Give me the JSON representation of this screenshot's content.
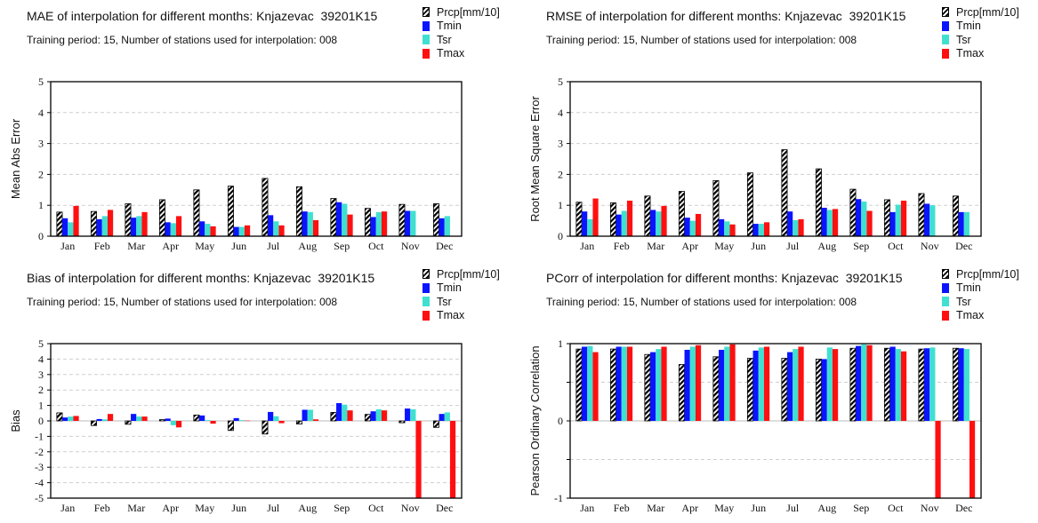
{
  "legend": {
    "series": [
      "Prcp[mm/10]",
      "Tmin",
      "Tsr",
      "Tmax"
    ]
  },
  "colors": {
    "Prcp[mm/10]": "hatch-black",
    "Tmin": "#0a14ff",
    "Tsr": "#3fe0d0",
    "Tmax": "#ff1010"
  },
  "months": [
    "Jan",
    "Feb",
    "Mar",
    "Apr",
    "May",
    "Jun",
    "Jul",
    "Aug",
    "Sep",
    "Oct",
    "Nov",
    "Dec"
  ],
  "panels": [
    {
      "title": "MAE of interpolation for different months: Knjazevac  39201K15",
      "subtitle": "Training period: 15, Number of stations used for interpolation: 008"
    },
    {
      "title": "RMSE of interpolation for different months: Knjazevac  39201K15",
      "subtitle": "Training period: 15, Number of stations used for interpolation: 008"
    },
    {
      "title": "Bias of interpolation for different months: Knjazevac  39201K15",
      "subtitle": "Training period: 15, Number of stations used for interpolation: 008"
    },
    {
      "title": "PCorr of interpolation for different months: Knjazevac  39201K15",
      "subtitle": "Training period: 15, Number of stations used for interpolation: 008"
    }
  ],
  "chart_data": [
    {
      "type": "bar",
      "ylabel": "Mean Abs Error",
      "ylim": [
        0,
        5
      ],
      "yticks": [
        "0",
        "1",
        "2",
        "3",
        "4",
        "5"
      ],
      "categories": [
        "Jan",
        "Feb",
        "Mar",
        "Apr",
        "May",
        "Jun",
        "Jul",
        "Aug",
        "Sep",
        "Oct",
        "Nov",
        "Dec"
      ],
      "series": [
        {
          "name": "Prcp[mm/10]",
          "values": [
            0.78,
            0.8,
            1.05,
            1.18,
            1.5,
            1.62,
            1.87,
            1.6,
            1.22,
            0.9,
            1.03,
            1.05
          ]
        },
        {
          "name": "Tmin",
          "values": [
            0.58,
            0.55,
            0.6,
            0.45,
            0.48,
            0.3,
            0.68,
            0.8,
            1.1,
            0.62,
            0.82,
            0.58
          ]
        },
        {
          "name": "Tsr",
          "values": [
            0.45,
            0.65,
            0.65,
            0.42,
            0.4,
            0.3,
            0.48,
            0.78,
            1.05,
            0.78,
            0.82,
            0.65
          ]
        },
        {
          "name": "Tmax",
          "values": [
            0.98,
            0.85,
            0.78,
            0.65,
            0.32,
            0.35,
            0.35,
            0.52,
            0.7,
            0.8,
            null,
            null
          ]
        }
      ]
    },
    {
      "type": "bar",
      "ylabel": "Root Mean Square Error",
      "ylim": [
        0,
        5
      ],
      "yticks": [
        "0",
        "1",
        "2",
        "3",
        "4",
        "5"
      ],
      "categories": [
        "Jan",
        "Feb",
        "Mar",
        "Apr",
        "May",
        "Jun",
        "Jul",
        "Aug",
        "Sep",
        "Oct",
        "Nov",
        "Dec"
      ],
      "series": [
        {
          "name": "Prcp[mm/10]",
          "values": [
            1.1,
            1.08,
            1.3,
            1.45,
            1.8,
            2.05,
            2.8,
            2.18,
            1.52,
            1.18,
            1.38,
            1.3
          ]
        },
        {
          "name": "Tmin",
          "values": [
            0.8,
            0.7,
            0.85,
            0.6,
            0.55,
            0.4,
            0.8,
            0.92,
            1.2,
            0.78,
            1.05,
            0.78
          ]
        },
        {
          "name": "Tsr",
          "values": [
            0.55,
            0.82,
            0.8,
            0.5,
            0.48,
            0.4,
            0.52,
            0.85,
            1.12,
            1.02,
            1.0,
            0.78
          ]
        },
        {
          "name": "Tmax",
          "values": [
            1.22,
            1.15,
            0.98,
            0.72,
            0.38,
            0.45,
            0.55,
            0.88,
            0.82,
            1.15,
            null,
            null
          ]
        }
      ]
    },
    {
      "type": "bar",
      "ylabel": "Bias",
      "ylim": [
        -5,
        5
      ],
      "yticks": [
        "-5",
        "-4",
        "-3",
        "-2",
        "-1",
        "0",
        "1",
        "2",
        "3",
        "4",
        "5"
      ],
      "categories": [
        "Jan",
        "Feb",
        "Mar",
        "Apr",
        "May",
        "Jun",
        "Jul",
        "Aug",
        "Sep",
        "Oct",
        "Nov",
        "Dec"
      ],
      "series": [
        {
          "name": "Prcp[mm/10]",
          "values": [
            0.52,
            -0.3,
            -0.22,
            0.08,
            0.38,
            -0.62,
            -0.85,
            -0.2,
            0.55,
            0.42,
            -0.12,
            -0.42
          ]
        },
        {
          "name": "Tmin",
          "values": [
            0.22,
            0.12,
            0.45,
            0.15,
            0.35,
            0.18,
            0.58,
            0.72,
            1.15,
            0.62,
            0.8,
            0.45
          ]
        },
        {
          "name": "Tsr",
          "values": [
            0.28,
            0.1,
            0.28,
            -0.28,
            0.05,
            0.05,
            0.3,
            0.72,
            1.05,
            0.75,
            0.75,
            0.55
          ]
        },
        {
          "name": "Tmax",
          "values": [
            0.32,
            0.45,
            0.28,
            -0.42,
            -0.18,
            0.02,
            -0.15,
            0.1,
            0.68,
            0.68,
            -5.0,
            -5.0
          ]
        }
      ]
    },
    {
      "type": "bar",
      "ylabel": "Pearson Ordinary Correlation",
      "ylim": [
        -1,
        1
      ],
      "yticks": [
        "-1",
        "",
        "0",
        "",
        "1"
      ],
      "categories": [
        "Jan",
        "Feb",
        "Mar",
        "Apr",
        "May",
        "Jun",
        "Jul",
        "Aug",
        "Sep",
        "Oct",
        "Nov",
        "Dec"
      ],
      "series": [
        {
          "name": "Prcp[mm/10]",
          "values": [
            0.93,
            0.93,
            0.86,
            0.73,
            0.83,
            0.81,
            0.81,
            0.8,
            0.94,
            0.94,
            0.93,
            0.94
          ]
        },
        {
          "name": "Tmin",
          "values": [
            0.96,
            0.96,
            0.89,
            0.92,
            0.92,
            0.91,
            0.89,
            0.8,
            0.97,
            0.96,
            0.94,
            0.94
          ]
        },
        {
          "name": "Tsr",
          "values": [
            0.97,
            0.96,
            0.93,
            0.96,
            0.96,
            0.95,
            0.93,
            0.95,
            0.99,
            0.93,
            0.95,
            0.93
          ]
        },
        {
          "name": "Tmax",
          "values": [
            0.89,
            0.96,
            0.96,
            0.98,
            0.99,
            0.96,
            0.96,
            0.93,
            0.98,
            0.9,
            -1.0,
            -1.0
          ]
        }
      ]
    }
  ]
}
